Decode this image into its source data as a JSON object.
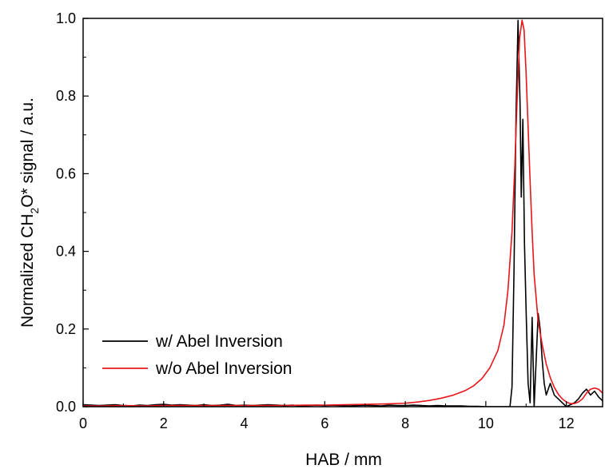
{
  "chart_data": {
    "type": "line",
    "xlabel": "HAB / mm",
    "ylabel_parts": [
      "Normalized CH",
      "2",
      "O* signal / a.u."
    ],
    "xlim": [
      0,
      12.9
    ],
    "ylim": [
      0,
      1.0
    ],
    "x_ticks": [
      0,
      2,
      4,
      6,
      8,
      10,
      12
    ],
    "y_ticks": [
      0.0,
      0.2,
      0.4,
      0.6,
      0.8,
      1.0
    ],
    "x_tick_labels": [
      "0",
      "2",
      "4",
      "6",
      "8",
      "10",
      "12"
    ],
    "y_tick_labels": [
      "0.0",
      "0.2",
      "0.4",
      "0.6",
      "0.8",
      "1.0"
    ],
    "grid": false,
    "legend_position": "lower-left",
    "series": [
      {
        "name": "w/ Abel Inversion",
        "color": "#000000",
        "x": [
          0.0,
          0.2,
          0.4,
          0.6,
          0.8,
          1.0,
          1.2,
          1.4,
          1.6,
          1.8,
          2.0,
          2.2,
          2.4,
          2.6,
          2.8,
          3.0,
          3.2,
          3.4,
          3.6,
          3.8,
          4.0,
          4.2,
          4.4,
          4.6,
          4.8,
          5.0,
          5.2,
          5.4,
          5.6,
          5.8,
          6.0,
          6.2,
          6.4,
          6.6,
          6.8,
          7.0,
          7.2,
          7.4,
          7.6,
          7.8,
          8.0,
          8.2,
          8.4,
          8.6,
          8.8,
          9.0,
          9.2,
          9.4,
          9.6,
          9.8,
          10.0,
          10.2,
          10.4,
          10.5,
          10.6,
          10.65,
          10.7,
          10.75,
          10.8,
          10.85,
          10.88,
          10.92,
          10.96,
          11.0,
          11.05,
          11.1,
          11.15,
          11.2,
          11.25,
          11.3,
          11.35,
          11.4,
          11.45,
          11.5,
          11.6,
          11.7,
          11.8,
          11.9,
          12.0,
          12.1,
          12.2,
          12.3,
          12.4,
          12.5,
          12.6,
          12.7,
          12.8,
          12.9
        ],
        "y": [
          0.005,
          0.004,
          0.003,
          0.004,
          0.005,
          0.003,
          0.002,
          0.004,
          0.003,
          0.005,
          0.006,
          0.004,
          0.005,
          0.004,
          0.003,
          0.005,
          0.003,
          0.004,
          0.006,
          0.003,
          0.004,
          0.003,
          0.004,
          0.005,
          0.004,
          0.003,
          0.004,
          0.002,
          0.003,
          0.004,
          0.003,
          0.004,
          0.003,
          0.002,
          0.003,
          0.004,
          0.003,
          0.002,
          0.004,
          0.003,
          0.003,
          0.004,
          0.003,
          0.002,
          0.003,
          0.002,
          0.002,
          0.002,
          0.001,
          0.001,
          0.0,
          0.0,
          0.0,
          0.0,
          0.0,
          0.05,
          0.35,
          0.75,
          0.995,
          0.78,
          0.54,
          0.74,
          0.42,
          0.25,
          0.06,
          0.01,
          0.23,
          0.0,
          0.12,
          0.24,
          0.2,
          0.12,
          0.06,
          0.03,
          0.06,
          0.03,
          0.02,
          0.01,
          0.0,
          0.005,
          0.01,
          0.02,
          0.035,
          0.045,
          0.03,
          0.04,
          0.025,
          0.015
        ]
      },
      {
        "name": "w/o Abel Inversion",
        "color": "#e8161b",
        "x": [
          0.0,
          0.5,
          1.0,
          1.5,
          2.0,
          2.5,
          3.0,
          3.5,
          4.0,
          4.5,
          5.0,
          5.5,
          6.0,
          6.5,
          7.0,
          7.5,
          8.0,
          8.3,
          8.6,
          8.9,
          9.2,
          9.5,
          9.7,
          9.9,
          10.1,
          10.3,
          10.45,
          10.55,
          10.65,
          10.72,
          10.78,
          10.84,
          10.9,
          10.95,
          11.0,
          11.05,
          11.1,
          11.15,
          11.2,
          11.3,
          11.4,
          11.5,
          11.6,
          11.7,
          11.8,
          11.9,
          12.0,
          12.1,
          12.2,
          12.3,
          12.4,
          12.5,
          12.6,
          12.7,
          12.8,
          12.9
        ],
        "y": [
          0.002,
          0.002,
          0.003,
          0.002,
          0.003,
          0.003,
          0.003,
          0.003,
          0.003,
          0.003,
          0.003,
          0.004,
          0.004,
          0.005,
          0.006,
          0.007,
          0.009,
          0.012,
          0.016,
          0.022,
          0.03,
          0.042,
          0.054,
          0.072,
          0.1,
          0.145,
          0.21,
          0.3,
          0.45,
          0.62,
          0.8,
          0.95,
          0.995,
          0.97,
          0.86,
          0.72,
          0.58,
          0.45,
          0.34,
          0.22,
          0.16,
          0.11,
          0.075,
          0.05,
          0.032,
          0.02,
          0.012,
          0.008,
          0.008,
          0.012,
          0.02,
          0.035,
          0.045,
          0.048,
          0.045,
          0.035
        ]
      }
    ]
  }
}
